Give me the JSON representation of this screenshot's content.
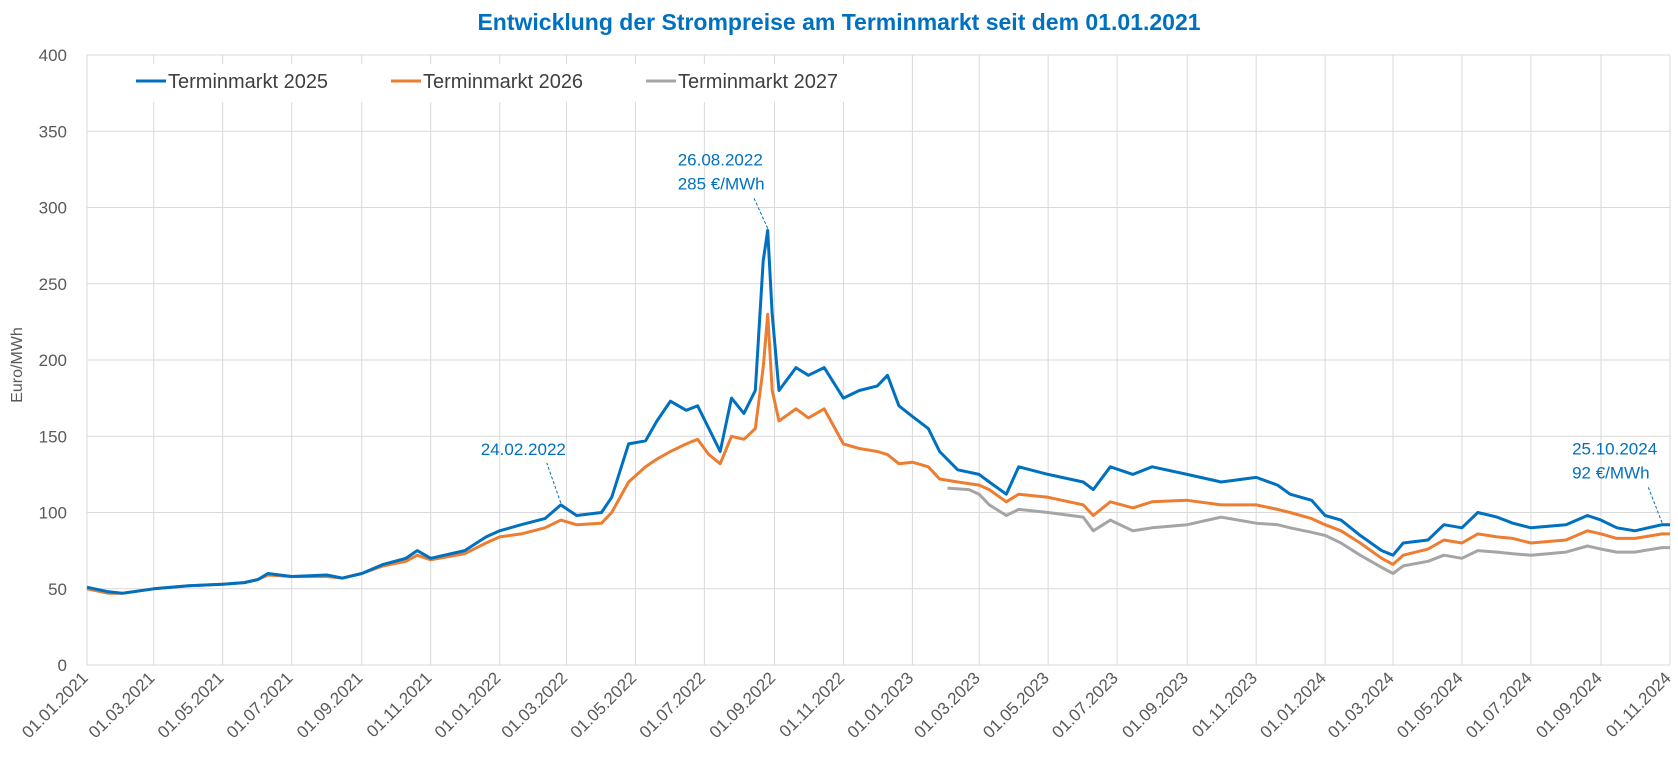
{
  "chart_data": {
    "type": "line",
    "title": "Entwicklung der Strompreise am Terminmarkt seit dem 01.01.2021",
    "ylabel": "Euro/MWh",
    "xlabel": "",
    "ylim": [
      0,
      400
    ],
    "yticks": [
      0,
      50,
      100,
      150,
      200,
      250,
      300,
      350,
      400
    ],
    "xlim": [
      "2021-01-01",
      "2024-11-01"
    ],
    "xticks": [
      "01.01.2021",
      "01.03.2021",
      "01.05.2021",
      "01.07.2021",
      "01.09.2021",
      "01.11.2021",
      "01.01.2022",
      "01.03.2022",
      "01.05.2022",
      "01.07.2022",
      "01.09.2022",
      "01.11.2022",
      "01.01.2023",
      "01.03.2023",
      "01.05.2023",
      "01.07.2023",
      "01.09.2023",
      "01.11.2023",
      "01.01.2024",
      "01.03.2024",
      "01.05.2024",
      "01.07.2024",
      "01.09.2024",
      "01.11.2024"
    ],
    "grid": true,
    "legend": "top-left",
    "series": [
      {
        "name": "Terminmarkt 2025",
        "color": "#0070C0",
        "points": [
          [
            "2021-01-01",
            51
          ],
          [
            "2021-01-20",
            48
          ],
          [
            "2021-02-01",
            47
          ],
          [
            "2021-03-01",
            50
          ],
          [
            "2021-04-01",
            52
          ],
          [
            "2021-05-01",
            53
          ],
          [
            "2021-05-20",
            54
          ],
          [
            "2021-06-01",
            56
          ],
          [
            "2021-06-10",
            60
          ],
          [
            "2021-07-01",
            58
          ],
          [
            "2021-08-01",
            59
          ],
          [
            "2021-08-15",
            57
          ],
          [
            "2021-09-01",
            60
          ],
          [
            "2021-09-20",
            66
          ],
          [
            "2021-10-10",
            70
          ],
          [
            "2021-10-20",
            75
          ],
          [
            "2021-11-01",
            70
          ],
          [
            "2021-12-01",
            75
          ],
          [
            "2021-12-20",
            84
          ],
          [
            "2022-01-01",
            88
          ],
          [
            "2022-01-20",
            92
          ],
          [
            "2022-02-10",
            96
          ],
          [
            "2022-02-24",
            105
          ],
          [
            "2022-03-10",
            98
          ],
          [
            "2022-04-01",
            100
          ],
          [
            "2022-04-10",
            110
          ],
          [
            "2022-04-25",
            145
          ],
          [
            "2022-05-10",
            147
          ],
          [
            "2022-05-20",
            160
          ],
          [
            "2022-06-01",
            173
          ],
          [
            "2022-06-15",
            167
          ],
          [
            "2022-06-25",
            170
          ],
          [
            "2022-07-05",
            155
          ],
          [
            "2022-07-15",
            140
          ],
          [
            "2022-07-25",
            175
          ],
          [
            "2022-08-05",
            165
          ],
          [
            "2022-08-15",
            180
          ],
          [
            "2022-08-22",
            265
          ],
          [
            "2022-08-26",
            285
          ],
          [
            "2022-08-30",
            230
          ],
          [
            "2022-09-05",
            180
          ],
          [
            "2022-09-20",
            195
          ],
          [
            "2022-10-01",
            190
          ],
          [
            "2022-10-15",
            195
          ],
          [
            "2022-11-01",
            175
          ],
          [
            "2022-11-15",
            180
          ],
          [
            "2022-12-01",
            183
          ],
          [
            "2022-12-10",
            190
          ],
          [
            "2022-12-20",
            170
          ],
          [
            "2023-01-01",
            163
          ],
          [
            "2023-01-15",
            155
          ],
          [
            "2023-01-25",
            140
          ],
          [
            "2023-02-10",
            128
          ],
          [
            "2023-03-01",
            125
          ],
          [
            "2023-03-10",
            120
          ],
          [
            "2023-03-25",
            112
          ],
          [
            "2023-04-05",
            130
          ],
          [
            "2023-05-01",
            125
          ],
          [
            "2023-06-01",
            120
          ],
          [
            "2023-06-10",
            115
          ],
          [
            "2023-06-25",
            130
          ],
          [
            "2023-07-15",
            125
          ],
          [
            "2023-08-01",
            130
          ],
          [
            "2023-09-01",
            125
          ],
          [
            "2023-10-01",
            120
          ],
          [
            "2023-11-01",
            123
          ],
          [
            "2023-11-20",
            118
          ],
          [
            "2023-12-01",
            112
          ],
          [
            "2023-12-20",
            108
          ],
          [
            "2024-01-01",
            98
          ],
          [
            "2024-01-15",
            95
          ],
          [
            "2024-02-01",
            85
          ],
          [
            "2024-02-20",
            75
          ],
          [
            "2024-03-01",
            72
          ],
          [
            "2024-03-10",
            80
          ],
          [
            "2024-04-01",
            82
          ],
          [
            "2024-04-15",
            92
          ],
          [
            "2024-05-01",
            90
          ],
          [
            "2024-05-15",
            100
          ],
          [
            "2024-06-01",
            97
          ],
          [
            "2024-06-15",
            93
          ],
          [
            "2024-07-01",
            90
          ],
          [
            "2024-08-01",
            92
          ],
          [
            "2024-08-20",
            98
          ],
          [
            "2024-09-01",
            95
          ],
          [
            "2024-09-15",
            90
          ],
          [
            "2024-10-01",
            88
          ],
          [
            "2024-10-25",
            92
          ],
          [
            "2024-11-01",
            92
          ]
        ]
      },
      {
        "name": "Terminmarkt 2026",
        "color": "#ED7D31",
        "points": [
          [
            "2021-01-01",
            50
          ],
          [
            "2021-01-20",
            47
          ],
          [
            "2021-02-01",
            47
          ],
          [
            "2021-03-01",
            50
          ],
          [
            "2021-04-01",
            52
          ],
          [
            "2021-05-01",
            53
          ],
          [
            "2021-05-20",
            54
          ],
          [
            "2021-06-01",
            56
          ],
          [
            "2021-06-10",
            59
          ],
          [
            "2021-07-01",
            58
          ],
          [
            "2021-08-01",
            58
          ],
          [
            "2021-08-15",
            57
          ],
          [
            "2021-09-01",
            60
          ],
          [
            "2021-09-20",
            65
          ],
          [
            "2021-10-10",
            68
          ],
          [
            "2021-10-20",
            72
          ],
          [
            "2021-11-01",
            69
          ],
          [
            "2021-12-01",
            73
          ],
          [
            "2021-12-20",
            80
          ],
          [
            "2022-01-01",
            84
          ],
          [
            "2022-01-20",
            86
          ],
          [
            "2022-02-10",
            90
          ],
          [
            "2022-02-24",
            95
          ],
          [
            "2022-03-10",
            92
          ],
          [
            "2022-04-01",
            93
          ],
          [
            "2022-04-10",
            100
          ],
          [
            "2022-04-25",
            120
          ],
          [
            "2022-05-10",
            130
          ],
          [
            "2022-05-20",
            135
          ],
          [
            "2022-06-01",
            140
          ],
          [
            "2022-06-15",
            145
          ],
          [
            "2022-06-25",
            148
          ],
          [
            "2022-07-05",
            138
          ],
          [
            "2022-07-15",
            132
          ],
          [
            "2022-07-25",
            150
          ],
          [
            "2022-08-05",
            148
          ],
          [
            "2022-08-15",
            155
          ],
          [
            "2022-08-22",
            195
          ],
          [
            "2022-08-26",
            230
          ],
          [
            "2022-08-30",
            180
          ],
          [
            "2022-09-05",
            160
          ],
          [
            "2022-09-20",
            168
          ],
          [
            "2022-10-01",
            162
          ],
          [
            "2022-10-15",
            168
          ],
          [
            "2022-11-01",
            145
          ],
          [
            "2022-11-15",
            142
          ],
          [
            "2022-12-01",
            140
          ],
          [
            "2022-12-10",
            138
          ],
          [
            "2022-12-20",
            132
          ],
          [
            "2023-01-01",
            133
          ],
          [
            "2023-01-15",
            130
          ],
          [
            "2023-01-25",
            122
          ],
          [
            "2023-02-10",
            120
          ],
          [
            "2023-03-01",
            118
          ],
          [
            "2023-03-10",
            115
          ],
          [
            "2023-03-25",
            107
          ],
          [
            "2023-04-05",
            112
          ],
          [
            "2023-05-01",
            110
          ],
          [
            "2023-06-01",
            105
          ],
          [
            "2023-06-10",
            98
          ],
          [
            "2023-06-25",
            107
          ],
          [
            "2023-07-15",
            103
          ],
          [
            "2023-08-01",
            107
          ],
          [
            "2023-09-01",
            108
          ],
          [
            "2023-10-01",
            105
          ],
          [
            "2023-11-01",
            105
          ],
          [
            "2023-11-20",
            102
          ],
          [
            "2023-12-01",
            100
          ],
          [
            "2023-12-20",
            96
          ],
          [
            "2024-01-01",
            92
          ],
          [
            "2024-01-15",
            88
          ],
          [
            "2024-02-01",
            80
          ],
          [
            "2024-02-20",
            70
          ],
          [
            "2024-03-01",
            66
          ],
          [
            "2024-03-10",
            72
          ],
          [
            "2024-04-01",
            76
          ],
          [
            "2024-04-15",
            82
          ],
          [
            "2024-05-01",
            80
          ],
          [
            "2024-05-15",
            86
          ],
          [
            "2024-06-01",
            84
          ],
          [
            "2024-06-15",
            83
          ],
          [
            "2024-07-01",
            80
          ],
          [
            "2024-08-01",
            82
          ],
          [
            "2024-08-20",
            88
          ],
          [
            "2024-09-01",
            86
          ],
          [
            "2024-09-15",
            83
          ],
          [
            "2024-10-01",
            83
          ],
          [
            "2024-10-25",
            86
          ],
          [
            "2024-11-01",
            86
          ]
        ]
      },
      {
        "name": "Terminmarkt 2027",
        "color": "#A5A5A5",
        "points": [
          [
            "2023-02-01",
            116
          ],
          [
            "2023-02-20",
            115
          ],
          [
            "2023-03-01",
            112
          ],
          [
            "2023-03-10",
            105
          ],
          [
            "2023-03-25",
            98
          ],
          [
            "2023-04-05",
            102
          ],
          [
            "2023-05-01",
            100
          ],
          [
            "2023-06-01",
            97
          ],
          [
            "2023-06-10",
            88
          ],
          [
            "2023-06-25",
            95
          ],
          [
            "2023-07-15",
            88
          ],
          [
            "2023-08-01",
            90
          ],
          [
            "2023-09-01",
            92
          ],
          [
            "2023-10-01",
            97
          ],
          [
            "2023-11-01",
            93
          ],
          [
            "2023-11-20",
            92
          ],
          [
            "2023-12-01",
            90
          ],
          [
            "2023-12-20",
            87
          ],
          [
            "2024-01-01",
            85
          ],
          [
            "2024-01-15",
            80
          ],
          [
            "2024-02-01",
            72
          ],
          [
            "2024-02-20",
            64
          ],
          [
            "2024-03-01",
            60
          ],
          [
            "2024-03-10",
            65
          ],
          [
            "2024-04-01",
            68
          ],
          [
            "2024-04-15",
            72
          ],
          [
            "2024-05-01",
            70
          ],
          [
            "2024-05-15",
            75
          ],
          [
            "2024-06-01",
            74
          ],
          [
            "2024-06-15",
            73
          ],
          [
            "2024-07-01",
            72
          ],
          [
            "2024-08-01",
            74
          ],
          [
            "2024-08-20",
            78
          ],
          [
            "2024-09-01",
            76
          ],
          [
            "2024-09-15",
            74
          ],
          [
            "2024-10-01",
            74
          ],
          [
            "2024-10-25",
            77
          ],
          [
            "2024-11-01",
            77
          ]
        ]
      }
    ],
    "annotations": [
      {
        "date": "2022-02-24",
        "value": 105,
        "lines": [
          "24.02.2022"
        ],
        "color": "#0070C0"
      },
      {
        "date": "2022-08-26",
        "value": 285,
        "lines": [
          "26.08.2022",
          "285 €/MWh"
        ],
        "color": "#0070C0"
      },
      {
        "date": "2024-10-25",
        "value": 92,
        "lines": [
          "25.10.2024",
          "92 €/MWh"
        ],
        "color": "#0070C0"
      }
    ]
  }
}
